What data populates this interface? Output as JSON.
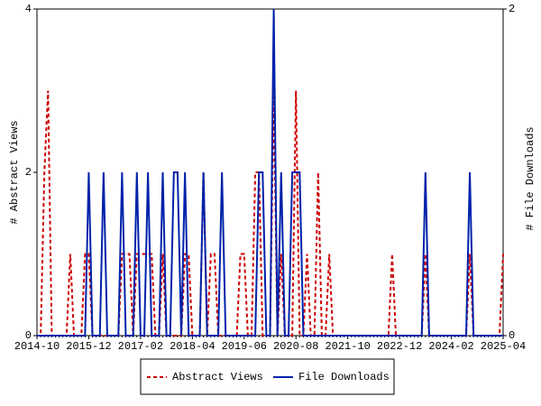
{
  "chart_data": {
    "type": "line",
    "y_label": "# Abstract Views",
    "y2_label": "# File Downloads",
    "categories": [
      "2014-10",
      null,
      null,
      null,
      null,
      null,
      null,
      null,
      null,
      null,
      null,
      null,
      null,
      null,
      "2015-12",
      null,
      null,
      null,
      null,
      null,
      null,
      null,
      null,
      null,
      null,
      null,
      null,
      null,
      "2017-02",
      null,
      null,
      null,
      null,
      null,
      null,
      null,
      null,
      null,
      null,
      null,
      null,
      null,
      "2018-04",
      null,
      null,
      null,
      null,
      null,
      null,
      null,
      null,
      null,
      null,
      null,
      null,
      null,
      "2019-06",
      null,
      null,
      null,
      null,
      null,
      null,
      null,
      null,
      null,
      null,
      null,
      null,
      null,
      "2020-08",
      null,
      null,
      null,
      null,
      null,
      null,
      null,
      null,
      null,
      null,
      null,
      null,
      null,
      "2021-10",
      null,
      null,
      null,
      null,
      null,
      null,
      null,
      null,
      null,
      null,
      null,
      null,
      null,
      "2022-12",
      null,
      null,
      null,
      null,
      null,
      null,
      null,
      null,
      null,
      null,
      null,
      null,
      null,
      "2024-02",
      null,
      null,
      null,
      null,
      null,
      null,
      null,
      null,
      null,
      null,
      null,
      null,
      null,
      "2025-04"
    ],
    "series": [
      {
        "name": "Abstract Views",
        "color": "#cc0000",
        "dashed": true,
        "values": [
          0,
          0,
          2,
          3,
          0,
          0,
          0,
          0,
          0,
          1,
          0,
          0,
          0,
          1,
          1,
          0,
          0,
          0,
          0,
          0,
          0,
          0,
          0,
          1,
          1,
          1,
          0,
          1,
          1,
          1,
          1,
          1,
          0,
          0,
          1,
          0,
          0,
          0,
          0,
          0,
          1,
          1,
          0,
          0,
          0,
          2,
          0,
          1,
          1,
          0,
          0,
          0,
          0,
          0,
          0,
          1,
          1,
          0,
          0,
          2,
          2,
          0,
          0,
          0,
          3,
          0,
          1,
          0,
          0,
          0,
          3,
          0,
          0,
          1,
          0,
          0,
          2,
          0,
          0,
          1,
          0,
          0,
          0,
          0,
          0,
          0,
          0,
          0,
          0,
          0,
          0,
          0,
          0,
          0,
          0,
          0,
          1,
          0,
          0,
          0,
          0,
          0,
          0,
          0,
          0,
          1,
          0,
          0,
          0,
          0,
          0,
          0,
          0,
          0,
          0,
          0,
          0,
          1,
          0,
          0,
          0,
          0,
          0,
          0,
          0,
          0,
          1
        ]
      },
      {
        "name": "File Downloads",
        "color": "#0022aa",
        "axis": "y2",
        "values": [
          0,
          0,
          0,
          0,
          0,
          0,
          0,
          0,
          0,
          0,
          0,
          0,
          0,
          0,
          1,
          0,
          0,
          0,
          1,
          0,
          0,
          0,
          0,
          1,
          0,
          0,
          0,
          1,
          0,
          0,
          1,
          0,
          0,
          0,
          1,
          0,
          0,
          1,
          1,
          0,
          1,
          0,
          0,
          0,
          0,
          1,
          0,
          0,
          0,
          0,
          1,
          0,
          0,
          0,
          0,
          0,
          0,
          0,
          0,
          0,
          1,
          1,
          0,
          0,
          2,
          0,
          1,
          0,
          0,
          1,
          1,
          1,
          0,
          0,
          0,
          0,
          0,
          0,
          0,
          0,
          0,
          0,
          0,
          0,
          0,
          0,
          0,
          0,
          0,
          0,
          0,
          0,
          0,
          0,
          0,
          0,
          0,
          0,
          0,
          0,
          0,
          0,
          0,
          0,
          0,
          1,
          0,
          0,
          0,
          0,
          0,
          0,
          0,
          0,
          0,
          0,
          0,
          1,
          0,
          0,
          0,
          0,
          0,
          0,
          0,
          0,
          0
        ]
      }
    ],
    "ylim": [
      0,
      4
    ],
    "yticks": [
      0,
      2,
      4
    ],
    "y2lim": [
      0,
      2
    ],
    "y2ticks": [
      0,
      2
    ],
    "legend": "bottom"
  }
}
